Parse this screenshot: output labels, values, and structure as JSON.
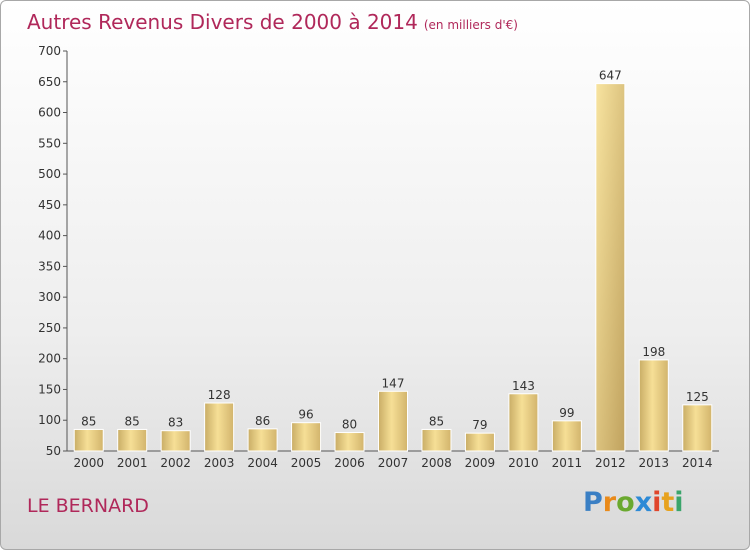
{
  "title": "Autres Revenus Divers de 2000 à 2014",
  "subtitle": "(en milliers d'€)",
  "place": "LE BERNARD",
  "logo": {
    "text": "Proxiti",
    "letters": [
      {
        "ch": "P",
        "color": "#3a7fc4"
      },
      {
        "ch": "r",
        "color": "#e98a1a"
      },
      {
        "ch": "o",
        "color": "#6aa92f"
      },
      {
        "ch": "x",
        "color": "#2d8ad6"
      },
      {
        "ch": "i",
        "color": "#e0452b"
      },
      {
        "ch": "t",
        "color": "#e7a21e"
      },
      {
        "ch": "i",
        "color": "#3aa56b"
      }
    ]
  },
  "colors": {
    "title": "#b0285a",
    "bar_light": "#f6df96",
    "bar_dark": "#c8ab63"
  },
  "chart_data": {
    "type": "bar",
    "categories": [
      "2000",
      "2001",
      "2002",
      "2003",
      "2004",
      "2005",
      "2006",
      "2007",
      "2008",
      "2009",
      "2010",
      "2011",
      "2012",
      "2013",
      "2014"
    ],
    "values": [
      85,
      85,
      83,
      128,
      86,
      96,
      80,
      147,
      85,
      79,
      143,
      99,
      647,
      198,
      125
    ],
    "ylim": [
      50,
      700
    ],
    "yticks": [
      50,
      100,
      150,
      200,
      250,
      300,
      350,
      400,
      450,
      500,
      550,
      600,
      650,
      700
    ],
    "grid": false,
    "legend": "none"
  }
}
